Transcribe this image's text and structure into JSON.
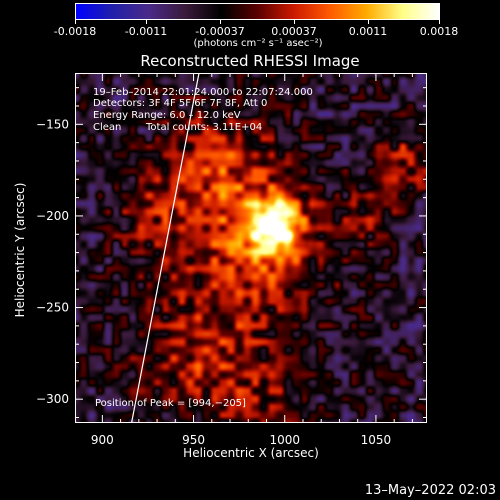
{
  "colorbar": {
    "ticks": [
      "-0.0018",
      "-0.0011",
      "-0.00037",
      "0.00037",
      "0.0011",
      "0.0018"
    ],
    "tick_values": [
      -0.0018,
      -0.0011,
      -0.00037,
      0.00037,
      0.0011,
      0.0018
    ],
    "range": [
      -0.0018,
      0.0018
    ],
    "unit": "(photons cm⁻² s⁻¹ asec⁻²)"
  },
  "chart_data": {
    "type": "heatmap",
    "title": "Reconstructed RHESSI Image",
    "xlabel": "Heliocentric X (arcsec)",
    "ylabel": "Heliocentric Y (arcsec)",
    "xlim": [
      885,
      1078
    ],
    "ylim": [
      -313,
      -122
    ],
    "xticks": [
      900,
      950,
      1000,
      1050
    ],
    "yticks": [
      -150,
      -200,
      -250,
      -300
    ],
    "xtick_labels": [
      "900",
      "950",
      "1000",
      "1050"
    ],
    "ytick_labels": [
      "−150",
      "−200",
      "−250",
      "−300"
    ],
    "peak": [
      994,
      -205
    ],
    "limb_line": [
      [
        916,
        -313
      ],
      [
        953,
        -122
      ]
    ],
    "colormap": [
      "#0000ff",
      "#2020aa",
      "#4a2a88",
      "#3a1a3a",
      "#000000",
      "#5a0000",
      "#cc1a00",
      "#ff5a00",
      "#ffaa00",
      "#ffff88",
      "#ffffff"
    ],
    "annotations": {
      "time_range": "19–Feb–2014 22:01:24.000 to 22:07:24.000",
      "detectors": "Detectors: 3F 4F 5F 6F 7F 8F, Att 0",
      "energy": "Energy Range: 6.0 – 12.0 keV",
      "algorithm": "Clean",
      "total_counts": "Total counts: 3.11E+04",
      "peak_label": "Position of Peak = [994,−205]"
    }
  },
  "footer": {
    "date": "13–May–2022 02:03"
  }
}
